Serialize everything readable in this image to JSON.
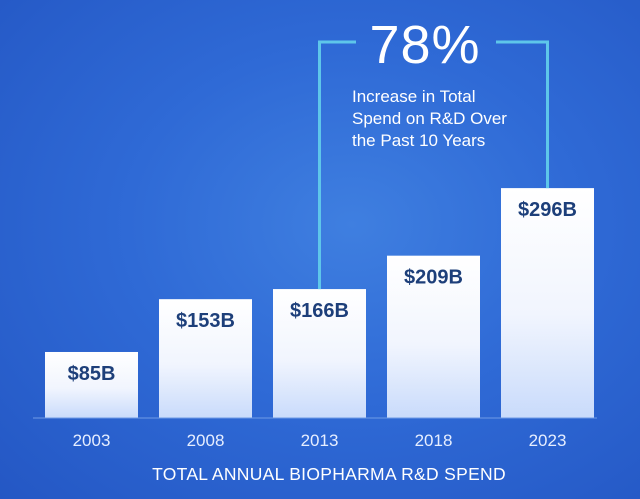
{
  "chart_data": {
    "type": "bar",
    "title": "TOTAL ANNUAL BIOPHARMA R&D SPEND",
    "categories": [
      "2003",
      "2008",
      "2013",
      "2018",
      "2023"
    ],
    "values": [
      85,
      153,
      166,
      209,
      296
    ],
    "value_labels": [
      "$85B",
      "$153B",
      "$166B",
      "$209B",
      "$296B"
    ],
    "unit": "$B",
    "ylim": [
      0,
      300
    ],
    "grid": false,
    "annotation": {
      "value": "78%",
      "lines": [
        "Increase in Total",
        "Spend on R&D Over",
        "the Past 10 Years"
      ],
      "from_category": "2013",
      "to_category": "2023"
    }
  },
  "colors": {
    "bar_top": "#ffffff",
    "bar_bottom": "#c9dbfb",
    "bracket": "#5ec6ea",
    "label_text": "#1d3f7a"
  }
}
